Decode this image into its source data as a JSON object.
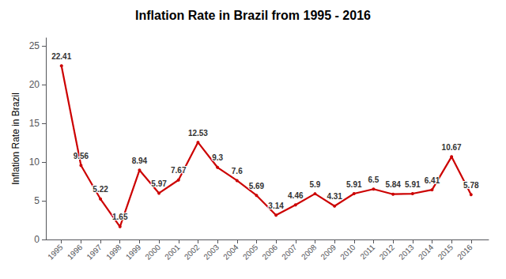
{
  "chart_data": {
    "type": "line",
    "title": "Inflation Rate in Brazil from 1995 - 2016",
    "y_label": "Inflation Rate in Brazil",
    "x": [
      1995,
      1996,
      1997,
      1998,
      1999,
      2000,
      2001,
      2002,
      2003,
      2004,
      2005,
      2006,
      2007,
      2008,
      2009,
      2010,
      2011,
      2012,
      2013,
      2014,
      2015,
      2016
    ],
    "values": [
      22.41,
      9.56,
      5.22,
      1.65,
      8.94,
      5.97,
      7.67,
      12.53,
      9.3,
      7.6,
      5.69,
      3.14,
      4.46,
      5.9,
      4.31,
      5.91,
      6.5,
      5.84,
      5.91,
      6.41,
      10.67,
      5.78
    ],
    "color": "#cc0000",
    "xlim": [
      1994.2,
      2016.9
    ],
    "xticks": [
      1995,
      1996,
      1997,
      1998,
      1999,
      2000,
      2001,
      2002,
      2003,
      2004,
      2005,
      2006,
      2007,
      2008,
      2009,
      2010,
      2011,
      2012,
      2013,
      2014,
      2015,
      2016
    ],
    "ylim": [
      0,
      26
    ],
    "yticks": [
      0,
      5,
      10,
      15,
      20,
      25
    ],
    "grid": false,
    "data_labels": true
  }
}
